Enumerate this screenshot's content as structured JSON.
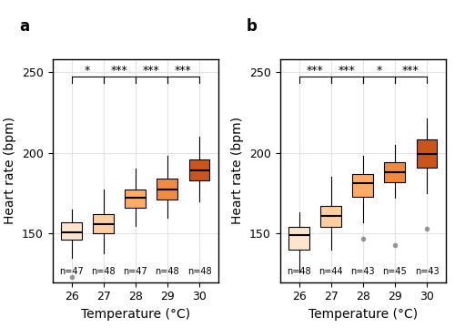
{
  "chart_data": [
    {
      "type": "box",
      "title": "a",
      "x_label": "Temperature (°C)",
      "y_label": "Heart rate (bpm)",
      "categories": [
        "26",
        "27",
        "28",
        "29",
        "30"
      ],
      "ylim": [
        120,
        258
      ],
      "yticks": [
        150,
        200,
        250
      ],
      "grid": true,
      "colors": [
        "#fde4cc",
        "#fdcf9f",
        "#fdac68",
        "#f08a3c",
        "#c9541c"
      ],
      "boxes": {
        "median": [
          151,
          156,
          172,
          177,
          189
        ],
        "q1": [
          146,
          150,
          166,
          171,
          183
        ],
        "q3": [
          157,
          162,
          177,
          184,
          196
        ],
        "whisker_low": [
          135,
          138,
          155,
          160,
          170
        ],
        "whisker_high": [
          165,
          177,
          190,
          198,
          210
        ],
        "outliers": [
          [
            123
          ],
          [],
          [],
          [],
          []
        ]
      },
      "n_labels": [
        "n=47",
        "n=48",
        "n=47",
        "n=48",
        "n=48"
      ],
      "comparisons": [
        {
          "from": "26",
          "to": "27",
          "label": "*"
        },
        {
          "from": "27",
          "to": "28",
          "label": "***"
        },
        {
          "from": "28",
          "to": "29",
          "label": "***"
        },
        {
          "from": "29",
          "to": "30",
          "label": "***"
        }
      ]
    },
    {
      "type": "box",
      "title": "b",
      "x_label": "Temperature (°C)",
      "y_label": "Heart rate (bpm)",
      "categories": [
        "26",
        "27",
        "28",
        "29",
        "30"
      ],
      "ylim": [
        120,
        258
      ],
      "yticks": [
        150,
        200,
        250
      ],
      "grid": true,
      "colors": [
        "#fde4cc",
        "#fdcf9f",
        "#fdac68",
        "#f08a3c",
        "#c9541c"
      ],
      "boxes": {
        "median": [
          149,
          161,
          181,
          188,
          199
        ],
        "q1": [
          140,
          154,
          173,
          182,
          191
        ],
        "q3": [
          154,
          167,
          187,
          194,
          208
        ],
        "whisker_low": [
          126,
          140,
          157,
          172,
          175
        ],
        "whisker_high": [
          163,
          185,
          198,
          205,
          221
        ],
        "outliers": [
          [],
          [],
          [
            147
          ],
          [
            143
          ],
          [
            153
          ]
        ]
      },
      "n_labels": [
        "n=48",
        "n=44",
        "n=43",
        "n=45",
        "n=43"
      ],
      "comparisons": [
        {
          "from": "26",
          "to": "27",
          "label": "***"
        },
        {
          "from": "27",
          "to": "28",
          "label": "***"
        },
        {
          "from": "28",
          "to": "29",
          "label": "*"
        },
        {
          "from": "29",
          "to": "30",
          "label": "***"
        }
      ]
    }
  ]
}
